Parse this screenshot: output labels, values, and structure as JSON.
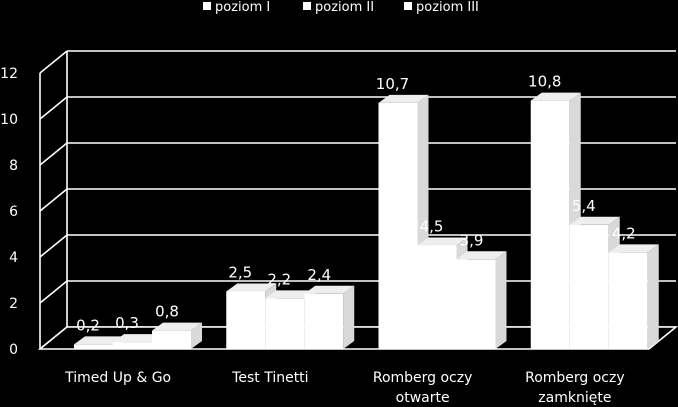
{
  "chart_data": {
    "type": "bar",
    "title": "",
    "xlabel": "",
    "ylabel": "",
    "ylim": [
      0,
      12
    ],
    "yticks": [
      "0",
      "2",
      "4",
      "6",
      "8",
      "10",
      "12"
    ],
    "grid": true,
    "legend_position": "top",
    "categories": [
      [
        "Timed Up & Go"
      ],
      [
        "Test Tinetti"
      ],
      [
        "Romberg oczy",
        "otwarte"
      ],
      [
        "Romberg oczy",
        "zamknięte"
      ]
    ],
    "series": [
      {
        "name": "poziom I",
        "values": [
          0.2,
          2.5,
          10.7,
          10.8
        ],
        "labels": [
          "0,2",
          "2,5",
          "10,7",
          "10,8"
        ]
      },
      {
        "name": "poziom II",
        "values": [
          0.3,
          2.2,
          4.5,
          5.4
        ],
        "labels": [
          "0,3",
          "2,2",
          "4,5",
          "5,4"
        ]
      },
      {
        "name": "poziom III",
        "values": [
          0.8,
          2.4,
          3.9,
          4.2
        ],
        "labels": [
          "0,8",
          "2,4",
          "3,9",
          "4,2"
        ]
      }
    ],
    "colors": {
      "background": "#000000",
      "bar": "#ffffff",
      "bar_side": "#d9d9d9",
      "bar_top": "#eeeeee",
      "grid": "#ffffff",
      "text": "#ffffff"
    }
  }
}
